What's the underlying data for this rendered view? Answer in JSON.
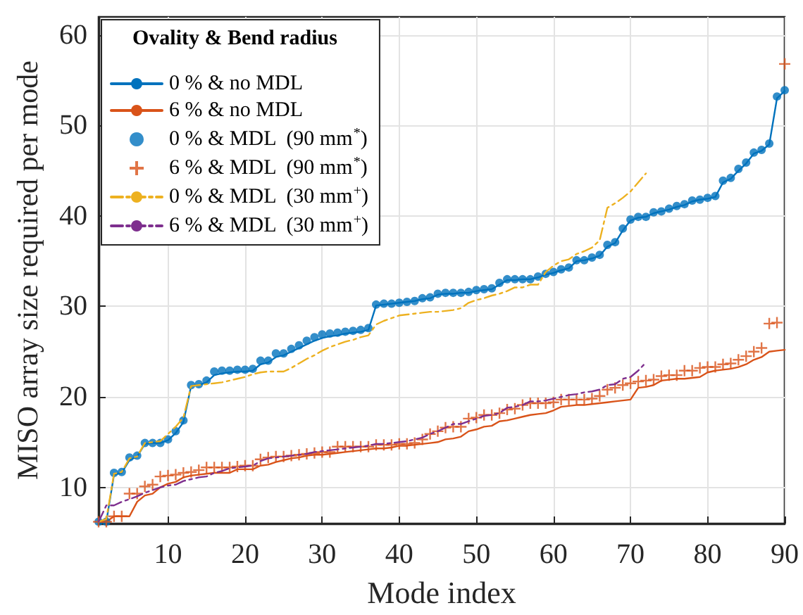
{
  "chart_data": {
    "type": "line",
    "xlabel": "Mode index",
    "ylabel": "MISO array size required per mode",
    "legend_title": "Ovality & Bend radius",
    "x": [
      1,
      2,
      3,
      4,
      5,
      6,
      7,
      8,
      9,
      10,
      11,
      12,
      13,
      14,
      15,
      16,
      17,
      18,
      19,
      20,
      21,
      22,
      23,
      24,
      25,
      26,
      27,
      28,
      29,
      30,
      31,
      32,
      33,
      34,
      35,
      36,
      37,
      38,
      39,
      40,
      41,
      42,
      43,
      44,
      45,
      46,
      47,
      48,
      49,
      50,
      51,
      52,
      53,
      54,
      55,
      56,
      57,
      58,
      59,
      60,
      61,
      62,
      63,
      64,
      65,
      66,
      67,
      68,
      69,
      70,
      71,
      72,
      73,
      74,
      75,
      76,
      77,
      78,
      79,
      80,
      81,
      82,
      83,
      84,
      85,
      86,
      87,
      88,
      89,
      90
    ],
    "xlim": [
      1,
      90
    ],
    "xticks": [
      10,
      20,
      30,
      40,
      50,
      60,
      70,
      80,
      90
    ],
    "ylim": [
      6,
      62
    ],
    "yticks": [
      10,
      20,
      30,
      40,
      50,
      60
    ],
    "grid": true,
    "legend": "top left",
    "series": [
      {
        "name": "0 % & no MDL",
        "type": "line",
        "marker": "none",
        "line_style": "solid",
        "color": "#0072bd",
        "values": [
          6.2,
          6.2,
          11.4,
          11.6,
          13.0,
          13.4,
          14.8,
          14.9,
          14.9,
          15.2,
          16.0,
          17.2,
          21.2,
          21.3,
          21.6,
          22.4,
          22.6,
          22.7,
          22.8,
          22.8,
          22.9,
          23.6,
          23.8,
          24.4,
          24.6,
          25.0,
          25.4,
          25.8,
          26.2,
          26.5,
          26.7,
          26.8,
          27.0,
          27.1,
          27.2,
          27.4,
          30.1,
          30.2,
          30.3,
          30.4,
          30.5,
          30.6,
          30.8,
          30.9,
          31.3,
          31.4,
          31.4,
          31.5,
          31.5,
          31.7,
          31.8,
          31.9,
          32.4,
          32.9,
          32.9,
          33.0,
          33.0,
          33.2,
          33.5,
          33.7,
          34.0,
          34.2,
          35.0,
          35.1,
          35.3,
          35.6,
          36.6,
          37.0,
          38.4,
          39.5,
          39.8,
          39.9,
          40.3,
          40.5,
          40.7,
          41.0,
          41.2,
          41.6,
          41.8,
          41.9,
          42.1,
          43.7,
          44.1,
          45.0,
          45.8,
          46.9,
          47.2,
          47.9,
          53.0,
          53.8
        ]
      },
      {
        "name": "6 % & no MDL",
        "type": "line",
        "marker": "none",
        "line_style": "solid",
        "color": "#d95319",
        "values": [
          6.2,
          6.2,
          6.8,
          6.8,
          6.8,
          8.4,
          9.1,
          9.3,
          10.0,
          10.4,
          10.6,
          11.1,
          11.3,
          11.4,
          11.5,
          11.6,
          11.6,
          11.6,
          12.0,
          12.0,
          12.0,
          12.4,
          12.5,
          12.8,
          13.0,
          13.2,
          13.3,
          13.5,
          13.6,
          13.6,
          13.7,
          13.8,
          13.9,
          14.0,
          14.1,
          14.2,
          14.3,
          14.3,
          14.4,
          14.6,
          14.6,
          14.7,
          14.8,
          14.9,
          15.0,
          15.3,
          15.4,
          15.6,
          16.2,
          16.4,
          16.7,
          16.8,
          17.3,
          17.4,
          17.6,
          17.8,
          18.0,
          18.1,
          18.2,
          18.5,
          18.9,
          19.0,
          19.1,
          19.1,
          19.2,
          19.3,
          19.4,
          19.5,
          19.6,
          19.7,
          21.0,
          21.1,
          21.3,
          21.8,
          21.9,
          22.0,
          22.0,
          22.1,
          22.2,
          22.7,
          22.9,
          23.0,
          23.1,
          23.3,
          23.6,
          24.1,
          24.4,
          25.0,
          25.1,
          25.2
        ]
      },
      {
        "name": "0 % & MDL  (90 mm$^{*}$)",
        "type": "scatter",
        "marker": "circle",
        "color": "#0072bd",
        "values": [
          6.2,
          6.2,
          11.6,
          11.7,
          13.3,
          13.5,
          14.9,
          14.9,
          14.9,
          15.3,
          16.2,
          17.4,
          21.3,
          21.4,
          21.8,
          22.8,
          22.9,
          22.9,
          23.0,
          23.0,
          23.1,
          24.0,
          24.0,
          24.8,
          24.8,
          25.3,
          25.7,
          26.2,
          26.6,
          26.9,
          27.0,
          27.1,
          27.2,
          27.3,
          27.4,
          27.6,
          30.2,
          30.3,
          30.3,
          30.4,
          30.5,
          30.6,
          30.9,
          31.0,
          31.4,
          31.5,
          31.5,
          31.5,
          31.6,
          31.8,
          31.9,
          32.0,
          32.6,
          33.0,
          33.0,
          33.0,
          33.0,
          33.3,
          33.6,
          33.8,
          34.1,
          34.3,
          35.1,
          35.1,
          35.4,
          35.7,
          36.8,
          37.1,
          38.6,
          39.6,
          39.9,
          39.9,
          40.4,
          40.5,
          40.8,
          41.1,
          41.3,
          41.7,
          41.8,
          42.0,
          42.2,
          43.9,
          44.2,
          45.2,
          45.9,
          47.0,
          47.3,
          48.0,
          53.2,
          53.9
        ]
      },
      {
        "name": "6 % & MDL  (90 mm$^{*}$)",
        "type": "scatter",
        "marker": "cross",
        "color": "#d95319",
        "values": [
          6.2,
          6.2,
          6.8,
          6.8,
          9.3,
          9.3,
          10.1,
          10.3,
          11.2,
          11.3,
          11.4,
          11.6,
          11.7,
          11.9,
          12.2,
          12.2,
          12.2,
          12.2,
          12.3,
          12.4,
          12.4,
          13.1,
          13.3,
          13.4,
          13.4,
          13.5,
          13.6,
          13.7,
          13.8,
          13.9,
          13.9,
          14.5,
          14.5,
          14.5,
          14.5,
          14.5,
          14.7,
          14.7,
          14.7,
          14.8,
          14.8,
          14.9,
          15.3,
          15.9,
          16.2,
          16.6,
          16.7,
          16.7,
          17.6,
          17.7,
          18.0,
          18.0,
          18.2,
          18.6,
          18.7,
          19.1,
          19.3,
          19.3,
          19.3,
          19.4,
          19.7,
          19.7,
          19.7,
          19.7,
          19.8,
          20.1,
          20.8,
          21.0,
          21.3,
          21.5,
          21.7,
          21.8,
          21.9,
          22.3,
          22.4,
          22.4,
          22.9,
          22.9,
          23.2,
          23.3,
          23.3,
          23.6,
          23.7,
          24.1,
          24.5,
          25.0,
          25.4,
          28.1,
          28.2,
          56.8
        ]
      },
      {
        "name": "0 % & MDL  (30 mm$^{+}$)",
        "type": "line",
        "marker": "none",
        "line_style": "dashdot",
        "color": "#edb120",
        "x": [
          1,
          2,
          3,
          4,
          5,
          6,
          7,
          8,
          9,
          10,
          11,
          12,
          13,
          14,
          15,
          16,
          17,
          18,
          19,
          20,
          21,
          22,
          23,
          24,
          25,
          26,
          27,
          28,
          29,
          30,
          31,
          32,
          33,
          34,
          35,
          36,
          37,
          38,
          39,
          40,
          41,
          42,
          43,
          44,
          45,
          46,
          47,
          48,
          49,
          50,
          51,
          52,
          53,
          54,
          55,
          56,
          57,
          58,
          59,
          60,
          61,
          62,
          63,
          64,
          65,
          66,
          67,
          68,
          69,
          70,
          71,
          72
        ],
        "values": [
          6.2,
          6.5,
          11.5,
          11.7,
          13.2,
          13.4,
          14.9,
          15.0,
          15.1,
          15.9,
          16.7,
          17.7,
          21.2,
          21.3,
          21.4,
          21.5,
          21.6,
          21.8,
          22.0,
          22.2,
          22.5,
          22.7,
          22.8,
          22.8,
          22.8,
          23.2,
          23.7,
          24.2,
          24.6,
          25.1,
          25.5,
          25.8,
          26.1,
          26.3,
          26.6,
          26.8,
          28.0,
          28.4,
          28.7,
          29.0,
          29.1,
          29.2,
          29.3,
          29.4,
          29.4,
          29.5,
          29.6,
          29.8,
          30.4,
          30.7,
          30.9,
          31.2,
          31.4,
          31.7,
          32.1,
          32.1,
          32.4,
          32.4,
          33.8,
          34.5,
          35.0,
          35.2,
          35.8,
          36.1,
          36.5,
          37.3,
          40.9,
          41.4,
          42.0,
          42.7,
          43.7,
          44.7
        ]
      },
      {
        "name": "6 % & MDL  (30 mm$^{+}$)",
        "type": "line",
        "marker": "none",
        "line_style": "dashdot",
        "color": "#7e2f8e",
        "x": [
          1,
          2,
          3,
          4,
          5,
          6,
          7,
          8,
          9,
          10,
          11,
          12,
          13,
          14,
          15,
          16,
          17,
          18,
          19,
          20,
          21,
          22,
          23,
          24,
          25,
          26,
          27,
          28,
          29,
          30,
          31,
          32,
          33,
          34,
          35,
          36,
          37,
          38,
          39,
          40,
          41,
          42,
          43,
          44,
          45,
          46,
          47,
          48,
          49,
          50,
          51,
          52,
          53,
          54,
          55,
          56,
          57,
          58,
          59,
          60,
          61,
          62,
          63,
          64,
          65,
          66,
          67,
          68,
          69,
          70,
          71,
          72
        ],
        "values": [
          6.2,
          8.0,
          8.0,
          8.4,
          8.7,
          9.0,
          9.4,
          9.7,
          10.0,
          10.2,
          10.3,
          10.7,
          10.9,
          11.1,
          11.2,
          11.6,
          11.8,
          12.1,
          12.2,
          12.3,
          12.4,
          12.9,
          13.2,
          13.3,
          13.4,
          13.5,
          13.6,
          13.7,
          13.9,
          14.0,
          14.1,
          14.2,
          14.3,
          14.4,
          14.5,
          14.6,
          14.8,
          14.8,
          14.9,
          15.0,
          15.1,
          15.3,
          15.5,
          15.9,
          16.2,
          16.6,
          17.0,
          17.0,
          17.3,
          17.6,
          17.9,
          18.0,
          18.2,
          18.8,
          18.9,
          19.1,
          19.5,
          19.5,
          19.6,
          19.8,
          20.0,
          20.2,
          20.3,
          20.5,
          20.6,
          20.8,
          21.3,
          21.4,
          22.0,
          22.2,
          22.9,
          23.8
        ]
      }
    ]
  }
}
